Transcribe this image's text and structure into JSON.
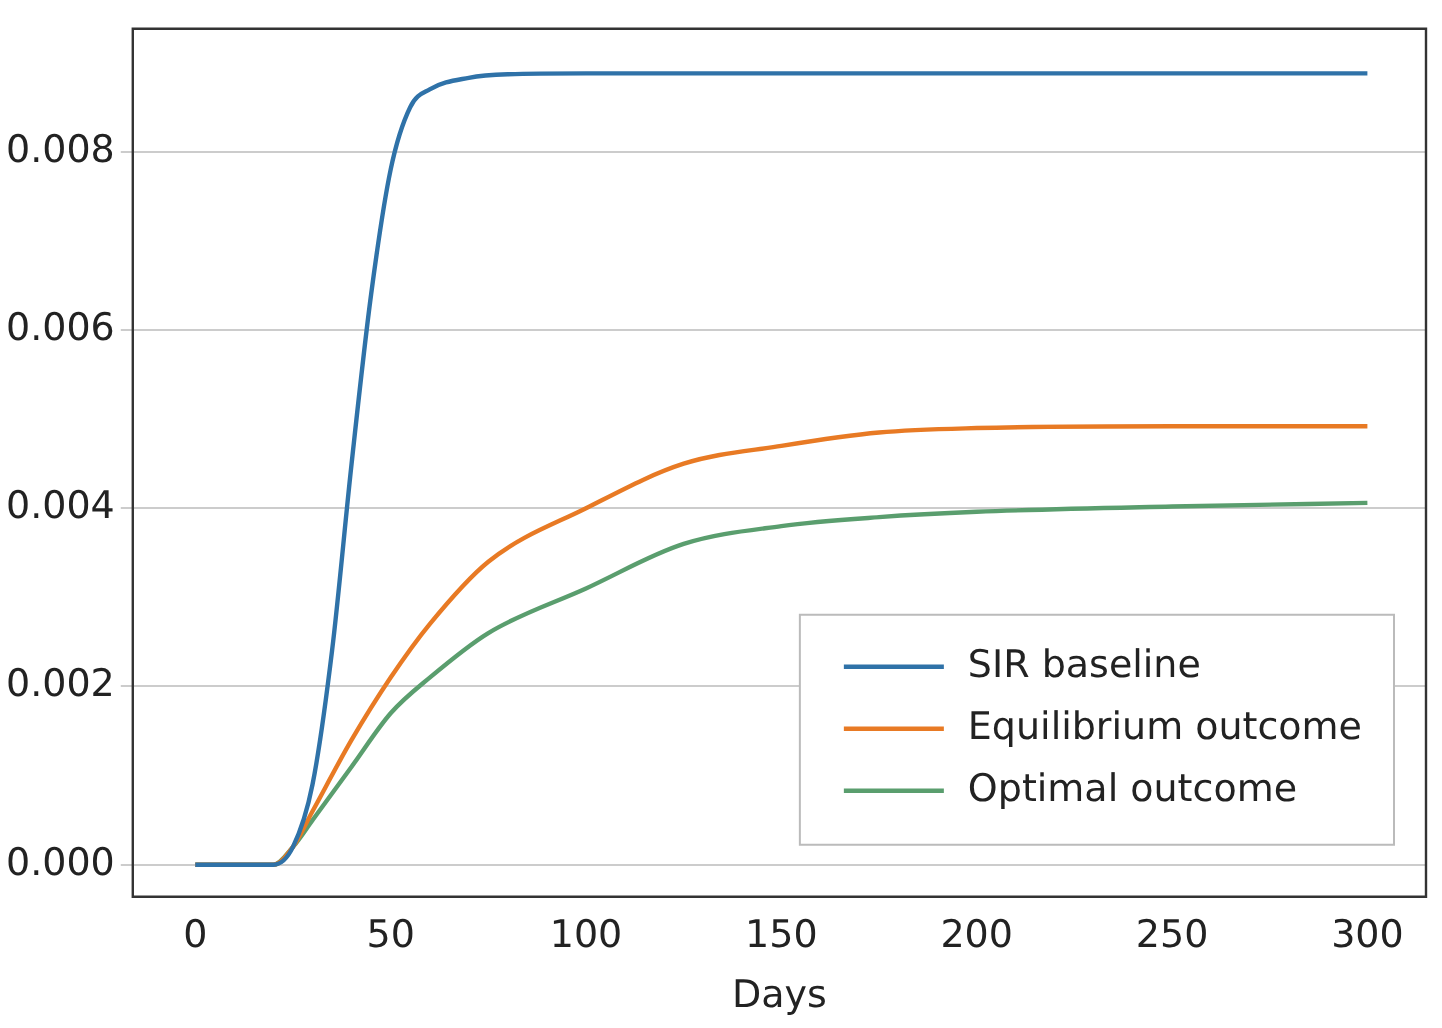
{
  "chart_data": {
    "type": "line",
    "xlabel": "Days",
    "xlim": [
      -16,
      315
    ],
    "xticks": [
      0,
      50,
      100,
      150,
      200,
      250,
      300
    ],
    "ylim": [
      -0.00036,
      0.00938
    ],
    "yticks": [
      {
        "value": 0,
        "label": "0.000"
      },
      {
        "value": 0.002,
        "label": "0.002"
      },
      {
        "value": 0.004,
        "label": "0.004"
      },
      {
        "value": 0.006,
        "label": "0.006"
      },
      {
        "value": 0.008,
        "label": "0.008"
      }
    ],
    "grid": "y",
    "legend": "bottom right",
    "marker": "none",
    "line_style": "solid",
    "series": [
      {
        "name": "SIR baseline",
        "color": "#2f72a8",
        "x": [
          0,
          10,
          20,
          25,
          30,
          35,
          40,
          45,
          50,
          55,
          60,
          70,
          80,
          100,
          150,
          200,
          250,
          300
        ],
        "values": [
          0,
          0,
          0,
          0.0002,
          0.0009,
          0.0024,
          0.0045,
          0.0064,
          0.0078,
          0.0085,
          0.0087,
          0.00883,
          0.00887,
          0.00888,
          0.00888,
          0.00888,
          0.00888,
          0.00888
        ]
      },
      {
        "name": "Equilibrium outcome",
        "color": "#e87a24",
        "x": [
          0,
          15,
          20,
          25,
          30,
          40,
          50,
          60,
          75,
          100,
          125,
          150,
          175,
          200,
          250,
          300
        ],
        "values": [
          0,
          0,
          0,
          0.0002,
          0.0006,
          0.0014,
          0.0021,
          0.0027,
          0.0034,
          0.004,
          0.0045,
          0.0047,
          0.00485,
          0.0049,
          0.00492,
          0.00492
        ]
      },
      {
        "name": "Optimal outcome",
        "color": "#5a9e6e",
        "x": [
          0,
          15,
          20,
          25,
          30,
          40,
          50,
          60,
          75,
          100,
          125,
          150,
          175,
          200,
          250,
          300
        ],
        "values": [
          0,
          0,
          0,
          0.0002,
          0.0005,
          0.0011,
          0.0017,
          0.0021,
          0.0026,
          0.0031,
          0.0036,
          0.0038,
          0.0039,
          0.00396,
          0.00402,
          0.00406
        ]
      }
    ]
  }
}
